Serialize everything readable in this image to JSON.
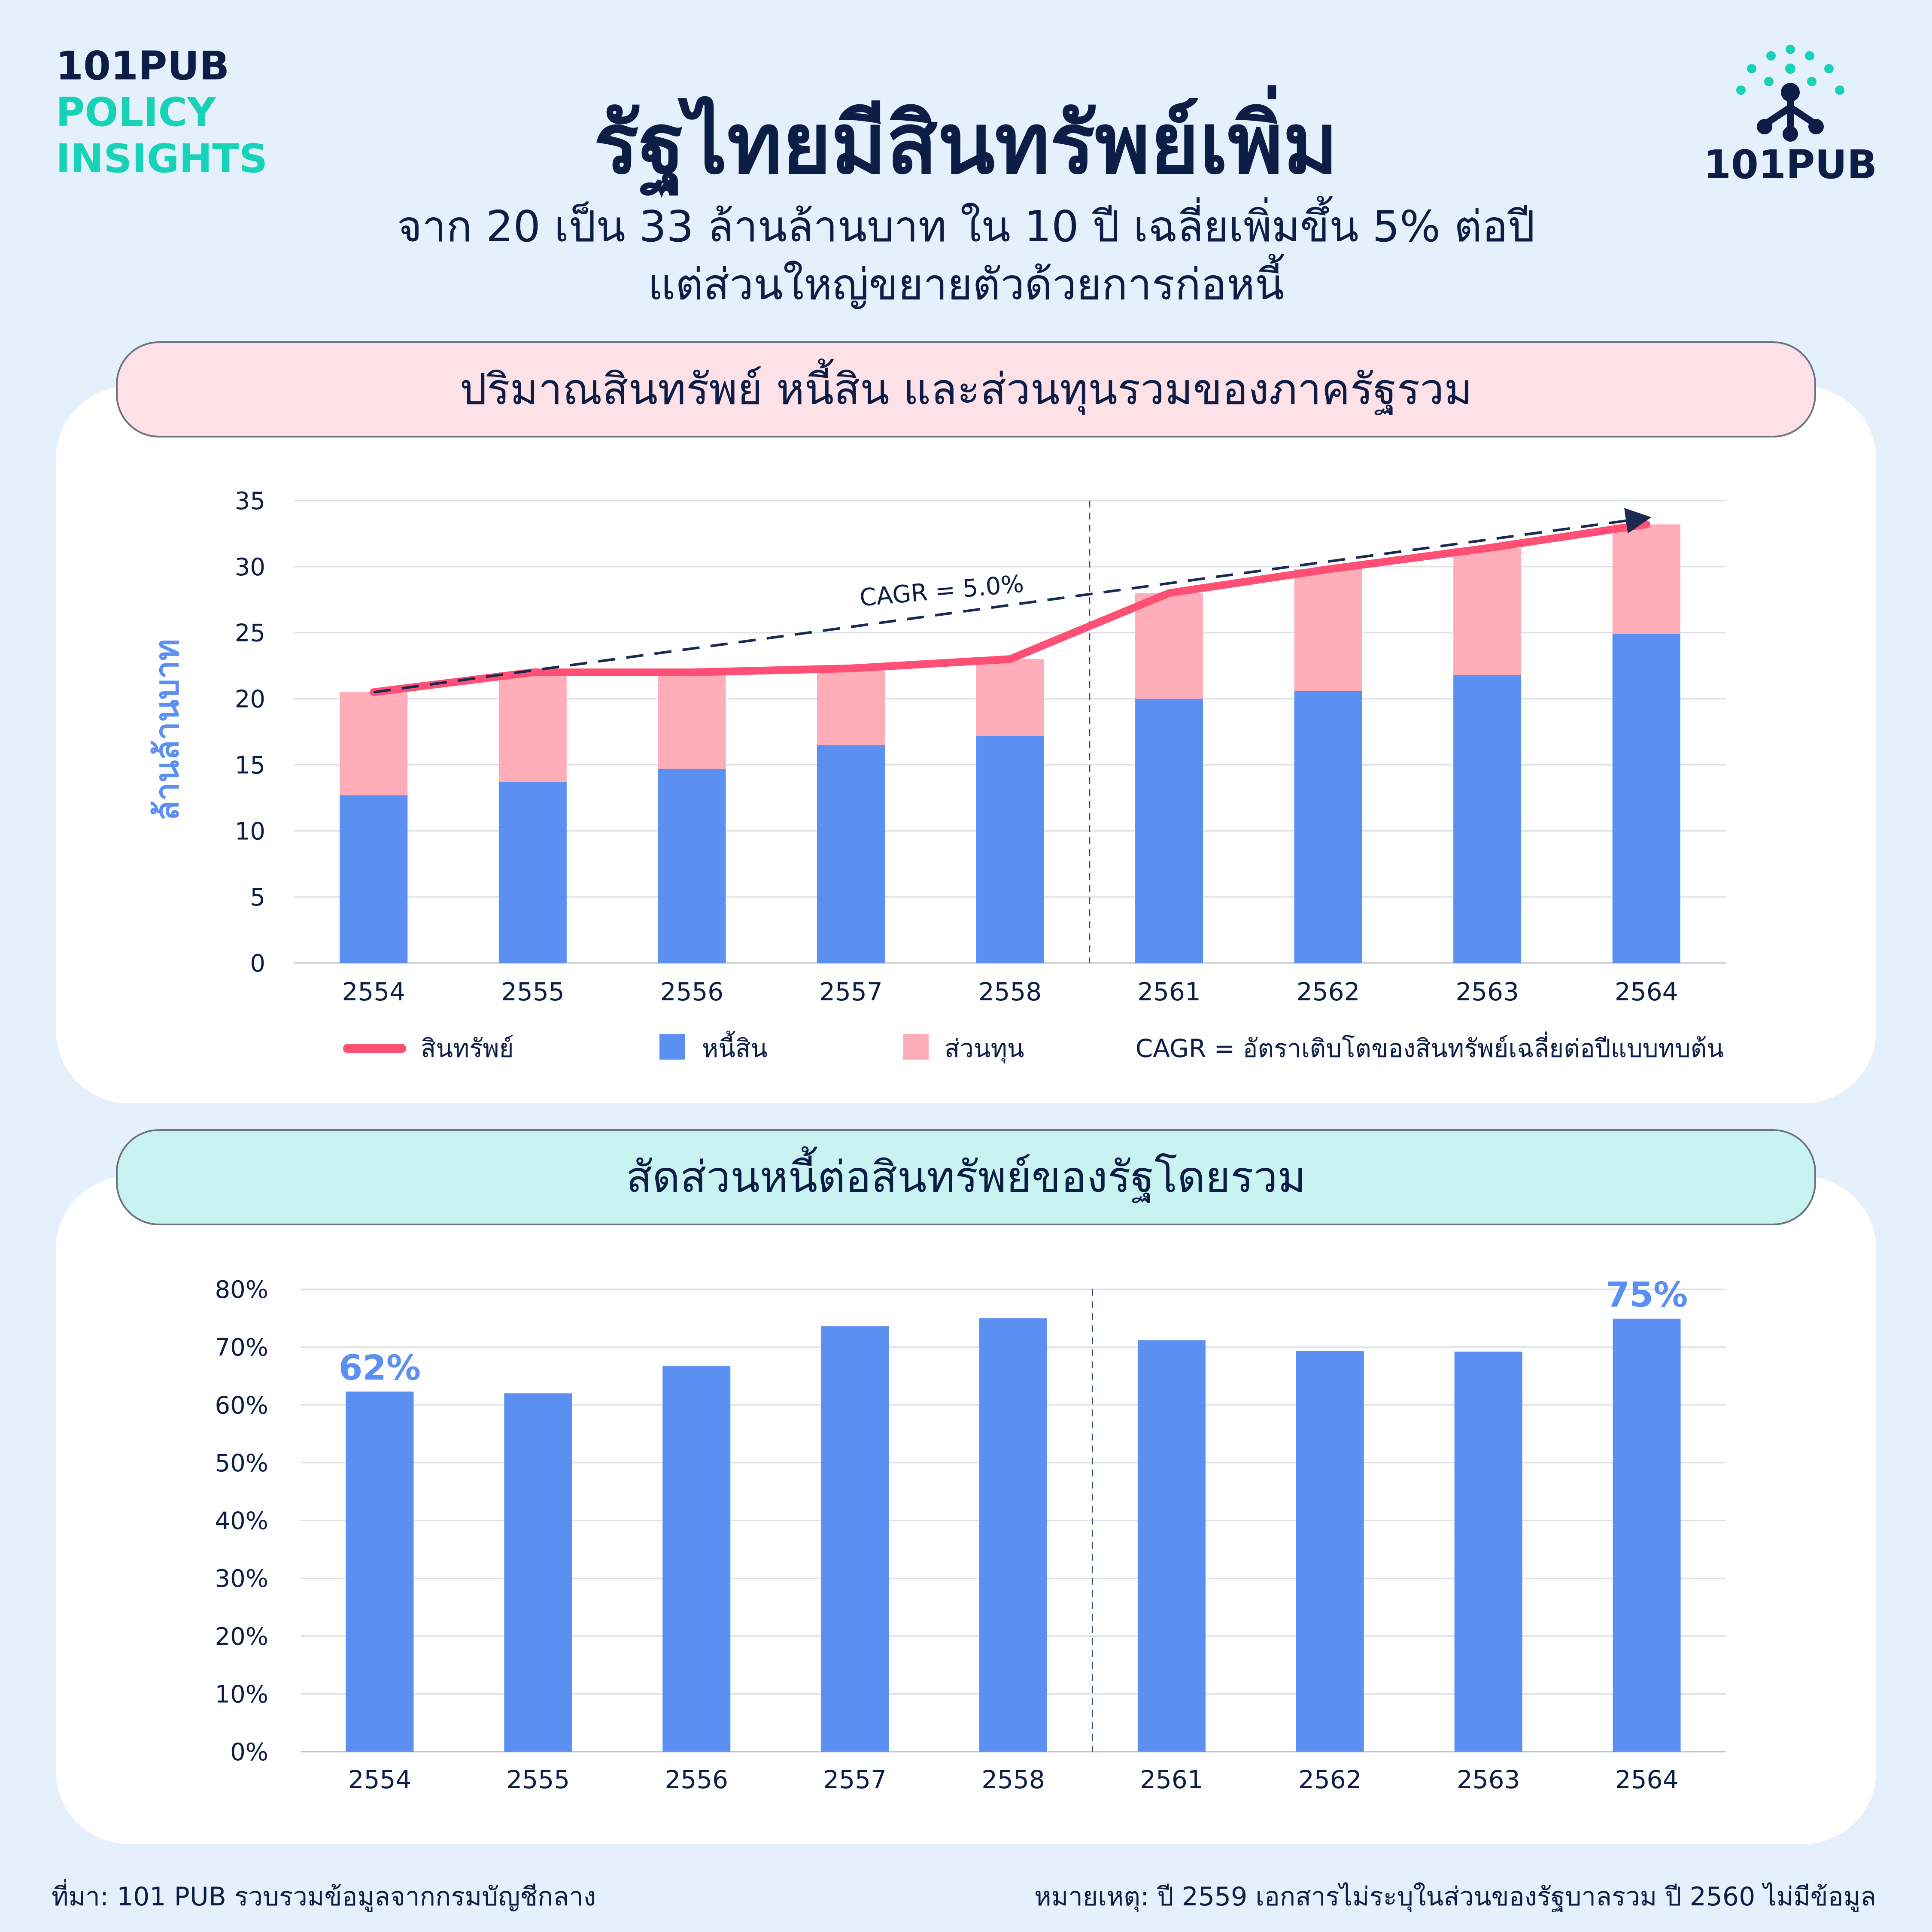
{
  "brand": {
    "line1": "101PUB",
    "line2": "POLICY",
    "line3": "INSIGHTS"
  },
  "logo": {
    "text": "101PUB",
    "icon": "network-node-icon"
  },
  "title": "รัฐไทยมีสินทรัพย์เพิ่ม",
  "subtitle": {
    "line1": "จาก 20 เป็น 33 ล้านล้านบาท ใน 10 ปี เฉลี่ยเพิ่มขึ้น 5% ต่อปี",
    "line2": "แต่ส่วนใหญ่ขยายตัวด้วยการก่อหนี้"
  },
  "panel1": {
    "heading": "ปริมาณสินทรัพย์ หนี้สิน และส่วนทุนรวมของภาครัฐรวม"
  },
  "panel2": {
    "heading": "สัดส่วนหนี้ต่อสินทรัพย์ของรัฐโดยรวม"
  },
  "colors": {
    "liability": "#5b8ff2",
    "equity": "#ffadb8",
    "asset_line": "#ff4f74",
    "trend": "#1a2a52",
    "accent_label": "#5b8ff2"
  },
  "chart_data": [
    {
      "type": "bar",
      "stacked": true,
      "categories": [
        "2554",
        "2555",
        "2556",
        "2557",
        "2558",
        "2561",
        "2562",
        "2563",
        "2564"
      ],
      "series": [
        {
          "name": "หนี้สิน",
          "values": [
            12.7,
            13.7,
            14.7,
            16.5,
            17.2,
            20.0,
            20.6,
            21.8,
            24.9
          ]
        },
        {
          "name": "ส่วนทุน",
          "values": [
            7.8,
            8.3,
            7.3,
            5.8,
            5.8,
            8.0,
            9.2,
            9.6,
            8.3
          ]
        }
      ],
      "line_series": {
        "name": "สินทรัพย์",
        "values": [
          20.5,
          22.0,
          22.0,
          22.3,
          23.0,
          28.0,
          29.8,
          31.4,
          33.2
        ]
      },
      "trend": {
        "label": "CAGR = 5.0%",
        "from": 20.5,
        "to": 33.2
      },
      "ylabel": "ล้านล้านบาท",
      "ylim": [
        0,
        35
      ],
      "yticks": [
        "0",
        "5",
        "10",
        "15",
        "20",
        "25",
        "30",
        "35"
      ],
      "grid": true,
      "legend": [
        "สินทรัพย์",
        "หนี้สิน",
        "ส่วนทุน"
      ],
      "legend_note": "CAGR = อัตราเติบโตของสินทรัพย์เฉลี่ยต่อปีแบบทบต้น",
      "legend_position": "bottom",
      "break_after": "2558"
    },
    {
      "type": "bar",
      "categories": [
        "2554",
        "2555",
        "2556",
        "2557",
        "2558",
        "2561",
        "2562",
        "2563",
        "2564"
      ],
      "values": [
        62.3,
        62.0,
        66.7,
        73.6,
        75.0,
        71.2,
        69.3,
        69.2,
        74.9
      ],
      "data_labels": {
        "2554": "62%",
        "2564": "75%"
      },
      "ylim": [
        0,
        80
      ],
      "yticks": [
        "0%",
        "10%",
        "20%",
        "30%",
        "40%",
        "50%",
        "60%",
        "70%",
        "80%"
      ],
      "grid": true,
      "break_after": "2558"
    }
  ],
  "footer": {
    "source": "ที่มา: 101 PUB รวบรวมข้อมูลจากกรมบัญชีกลาง",
    "note": "หมายเหตุ: ปี 2559 เอกสารไม่ระบุในส่วนของรัฐบาลรวม ปี 2560 ไม่มีข้อมูล"
  }
}
